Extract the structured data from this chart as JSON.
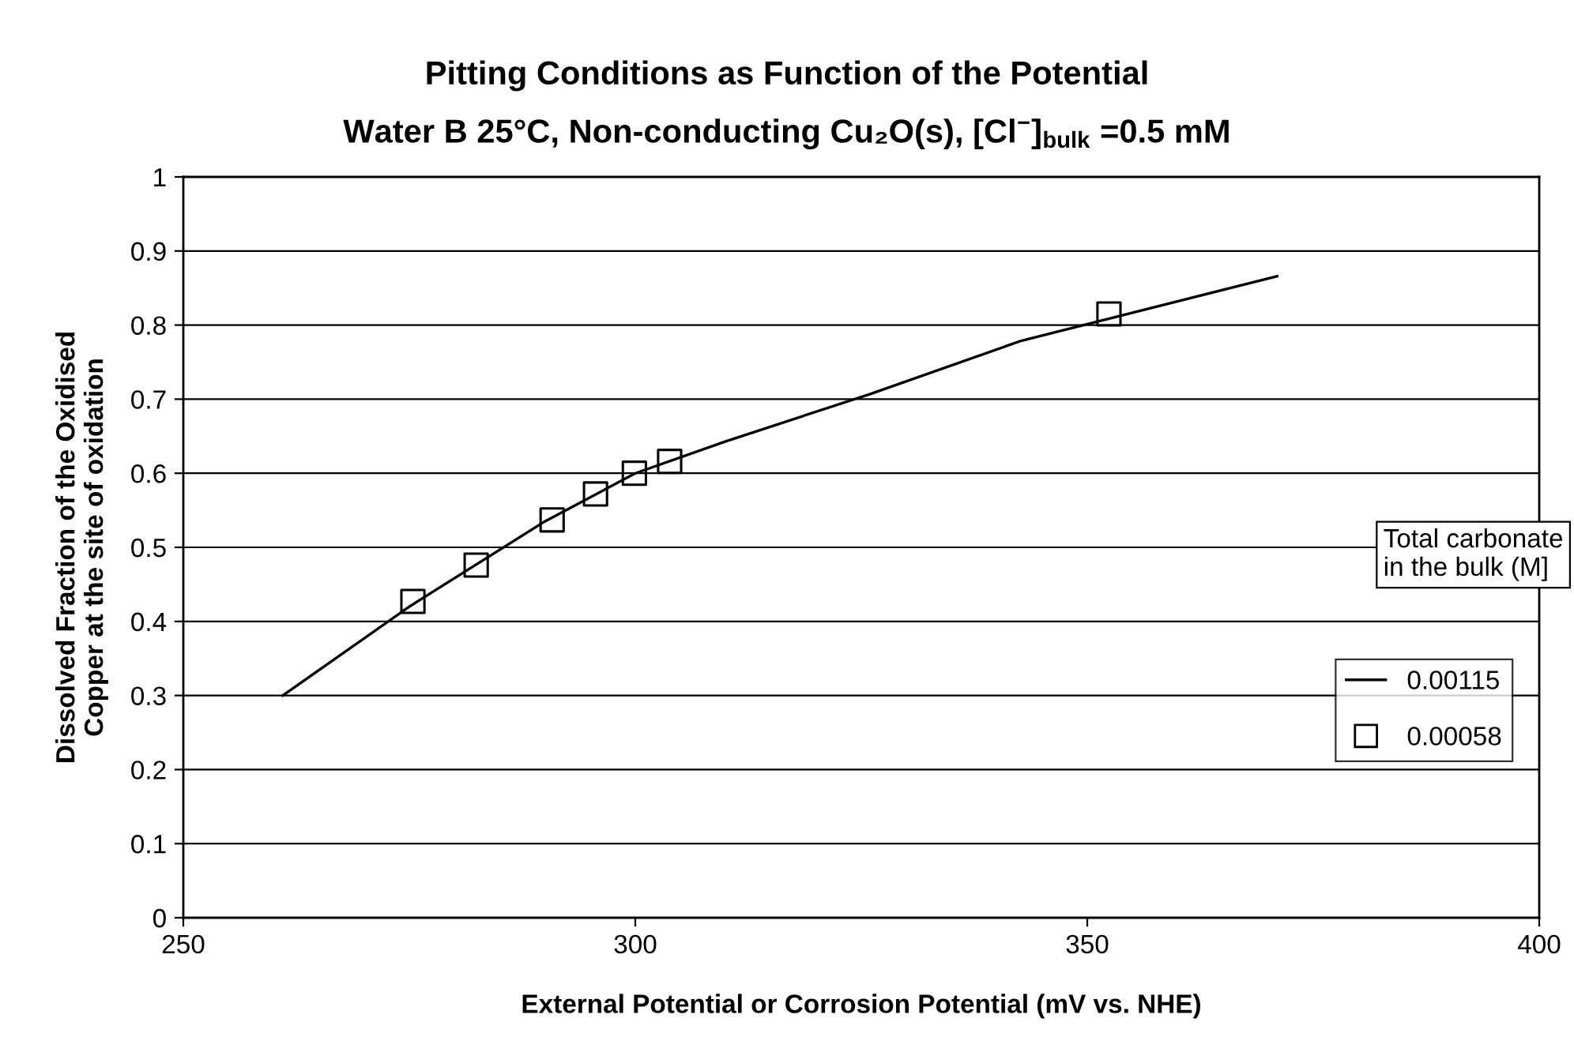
{
  "chart_data": {
    "type": "line",
    "title": "Pitting Conditions as Function of the Potential",
    "subtitle": "Water B 25°C, Non-conducting Cu₂O(s), [Cl$^{−}$]$_{bulk}$ =0.5 mM",
    "xlabel": "External Potential or Corrosion Potential (mV vs. NHE)",
    "ylabel": "Dissolved Fraction of the Oxidised\nCopper at the site of oxidation",
    "legend_title": "Total carbonate\nin the bulk (M]",
    "series": [
      {
        "name": "0.00115",
        "color": "#000000",
        "marker": "none",
        "line_style": "solid",
        "x": [
          261,
          275,
          290,
          300,
          310,
          326,
          342.5,
          371
        ],
        "values": [
          0.3,
          0.42,
          0.535,
          0.6,
          0.643,
          0.707,
          0.778,
          0.866
        ]
      },
      {
        "name": "0.00058",
        "type": "scatter",
        "color": "#000000",
        "marker": "square",
        "x": [
          275.4,
          282.4,
          290.8,
          295.6,
          299.9,
          303.8,
          352.4
        ],
        "values": [
          0.427,
          0.476,
          0.537,
          0.572,
          0.6,
          0.616,
          0.815
        ]
      }
    ],
    "xlim": [
      250,
      400
    ],
    "xticks": [
      250,
      300,
      350,
      400
    ],
    "ylim": [
      0,
      1
    ],
    "yticks": [
      0,
      0.1,
      0.2,
      0.3,
      0.4,
      0.5,
      0.6,
      0.7,
      0.8,
      0.9,
      1
    ],
    "grid": "y",
    "legend": "right"
  }
}
